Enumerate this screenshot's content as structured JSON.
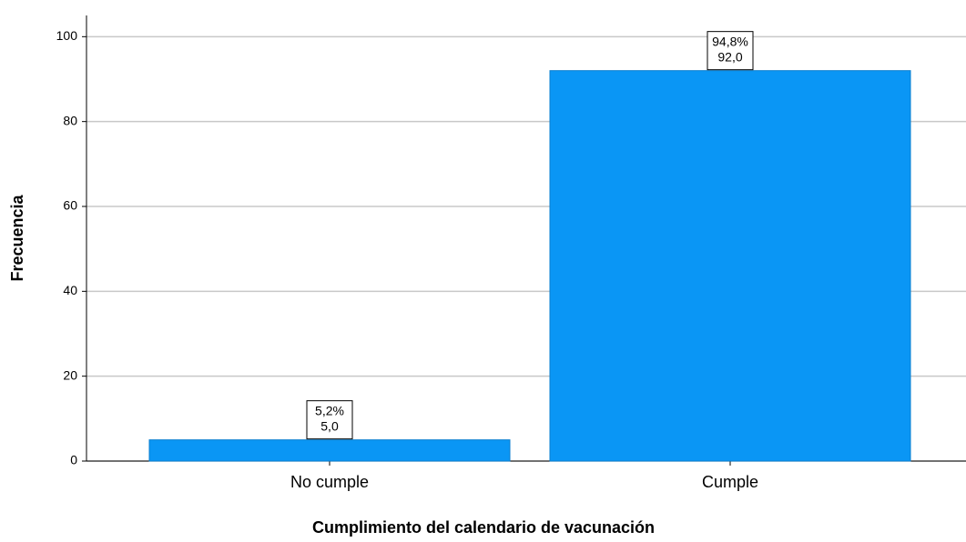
{
  "chart_data": {
    "type": "bar",
    "x_label": "Cumplimiento del calendario de vacunación",
    "y_label": "Frecuencia",
    "categories": [
      "No cumple",
      "Cumple"
    ],
    "values": [
      5,
      92
    ],
    "value_labels": [
      "5,0",
      "92,0"
    ],
    "percents": [
      5.2,
      94.8
    ],
    "percent_labels": [
      "5,2%",
      "94,8%"
    ],
    "color": "#0a96f5",
    "ylim": [
      0,
      105
    ],
    "yticks": [
      0,
      20,
      40,
      60,
      80,
      100
    ],
    "grid": true
  }
}
